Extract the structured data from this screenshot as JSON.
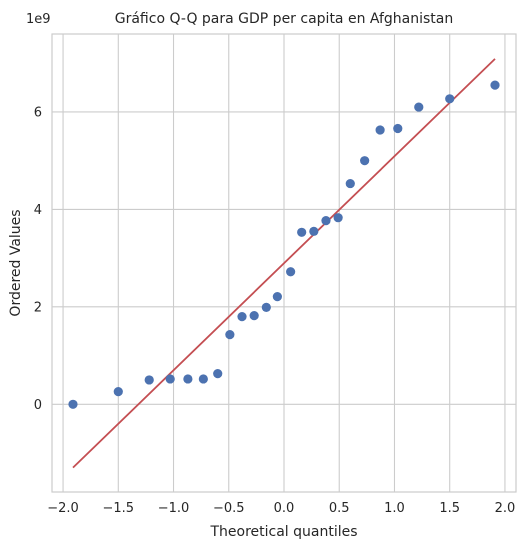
{
  "chart_data": {
    "type": "scatter",
    "title": "Gráfico Q-Q para GDP per capita en Afghanistan",
    "xlabel": "Theoretical quantiles",
    "ylabel": "Ordered Values",
    "y_offset_text": "1e9",
    "xlim": [
      -2.1,
      2.1
    ],
    "ylim": [
      -1.8,
      7.6
    ],
    "xticks": [
      -2.0,
      -1.5,
      -1.0,
      -0.5,
      0.0,
      0.5,
      1.0,
      1.5,
      2.0
    ],
    "xtick_labels": [
      "−2.0",
      "−1.5",
      "−1.0",
      "−0.5",
      "0.0",
      "0.5",
      "1.0",
      "1.5",
      "2.0"
    ],
    "yticks": [
      0,
      2,
      4,
      6
    ],
    "ytick_labels": [
      "0",
      "2",
      "4",
      "6"
    ],
    "grid": true,
    "colors": {
      "points": "#4c72b0",
      "line": "#c44e52",
      "grid": "#cccccc",
      "frame": "#cccccc"
    },
    "points": {
      "x": [
        -1.91,
        -1.5,
        -1.22,
        -1.03,
        -0.87,
        -0.73,
        -0.6,
        -0.49,
        -0.38,
        -0.27,
        -0.16,
        -0.06,
        0.06,
        0.16,
        0.27,
        0.38,
        0.49,
        0.6,
        0.73,
        0.87,
        1.03,
        1.22,
        1.5,
        1.91
      ],
      "y": [
        0.0,
        0.26,
        0.5,
        0.52,
        0.52,
        0.52,
        0.63,
        1.43,
        1.8,
        1.82,
        1.99,
        2.21,
        2.72,
        3.53,
        3.55,
        3.77,
        3.83,
        4.53,
        5.0,
        5.63,
        5.66,
        6.1,
        6.27,
        6.55
      ]
    },
    "fit_line": {
      "x": [
        -1.91,
        1.91
      ],
      "y": [
        -1.3,
        7.09
      ]
    }
  }
}
